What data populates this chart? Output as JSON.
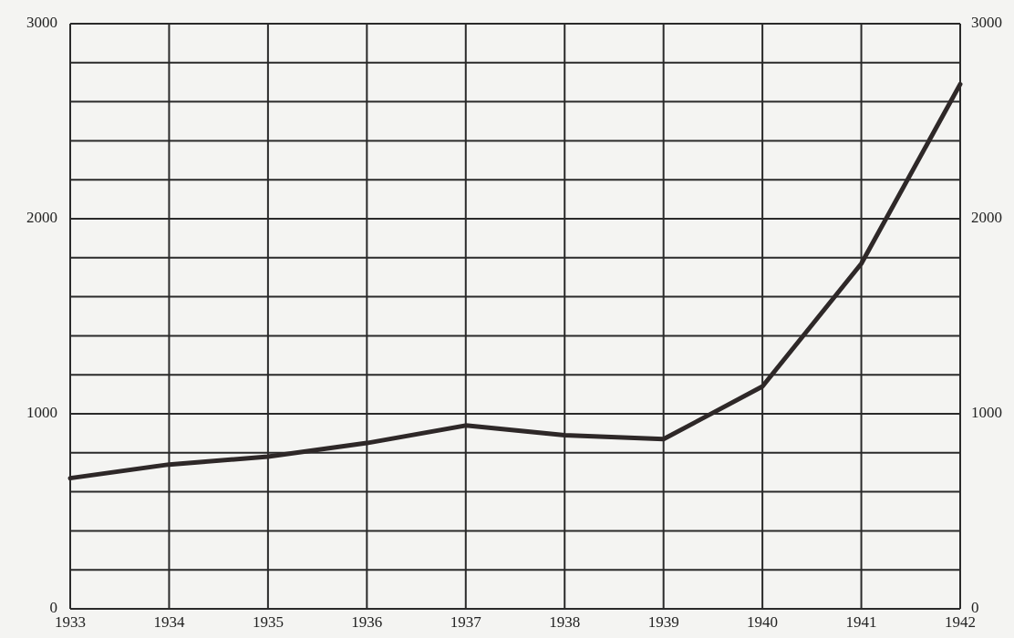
{
  "chart_data": {
    "type": "line",
    "x": [
      1933,
      1934,
      1935,
      1936,
      1937,
      1938,
      1939,
      1940,
      1941,
      1942
    ],
    "series": [
      {
        "color": "#2e2828",
        "values": [
          670,
          740,
          780,
          850,
          940,
          890,
          870,
          1140,
          1770,
          2690
        ]
      }
    ],
    "xlim": [
      1933,
      1942
    ],
    "xticks": [
      1933,
      1934,
      1935,
      1936,
      1937,
      1938,
      1939,
      1940,
      1941,
      1942
    ],
    "ylim": [
      0,
      3000
    ],
    "yticks": [
      0,
      {
        "value": 200,
        "label": null
      },
      {
        "value": 400,
        "label": null
      },
      {
        "value": 600,
        "label": null
      },
      {
        "value": 800,
        "label": null
      },
      1000,
      {
        "value": 1200,
        "label": null
      },
      {
        "value": 1400,
        "label": null
      },
      {
        "value": 1600,
        "label": null
      },
      {
        "value": 1800,
        "label": null
      },
      2000,
      {
        "value": 2200,
        "label": null
      },
      {
        "value": 2400,
        "label": null
      },
      {
        "value": 2600,
        "label": null
      },
      {
        "value": 2800,
        "label": null
      },
      3000
    ],
    "y2lim": [
      0,
      3000
    ],
    "y2ticks": [
      0,
      1000,
      2000,
      3000
    ],
    "grid": true,
    "marker": "none",
    "line_style": "solid"
  }
}
